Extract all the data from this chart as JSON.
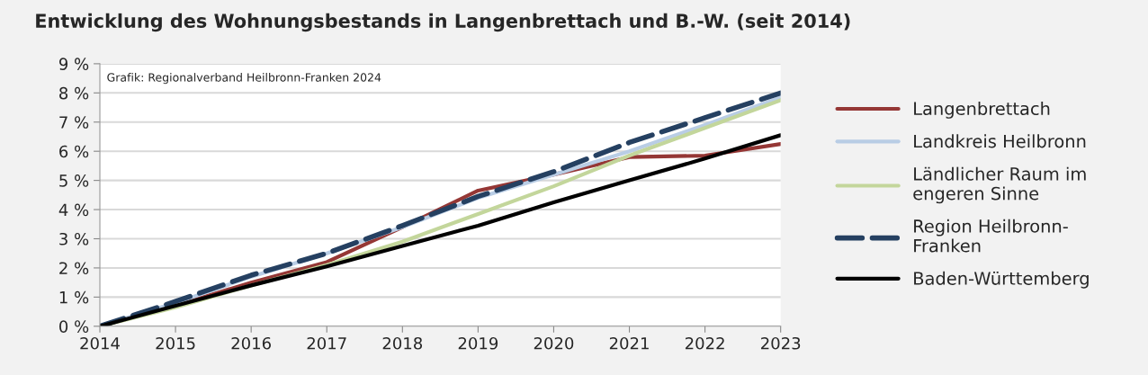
{
  "chart_data": {
    "type": "line",
    "title": "Entwicklung des Wohnungsbestands in Langenbrettach und B.-W. (seit 2014)",
    "annotations": [
      "Grafik: Regionalverband Heilbronn-Franken 2024"
    ],
    "x": [
      2014,
      2015,
      2016,
      2017,
      2018,
      2019,
      2020,
      2021,
      2022,
      2023
    ],
    "series": [
      {
        "name": "Langenbrettach",
        "color": "#953735",
        "values": [
          0,
          0.7,
          1.5,
          2.2,
          3.4,
          4.65,
          5.2,
          5.8,
          5.85,
          6.25
        ]
      },
      {
        "name": "Landkreis Heilbronn",
        "color": "#b9cde5",
        "values": [
          0,
          0.8,
          1.7,
          2.5,
          3.4,
          4.4,
          5.2,
          6.0,
          6.9,
          7.85
        ]
      },
      {
        "name": "Ländlicher Raum im\nengeren Sinne",
        "color": "#c3d69b",
        "values": [
          0,
          0.65,
          1.4,
          2.1,
          2.9,
          3.85,
          4.8,
          5.85,
          6.8,
          7.75
        ]
      },
      {
        "name": "Region Heilbronn-\nFranken",
        "color": "#254061",
        "line_style": "dashed",
        "values": [
          0,
          0.85,
          1.75,
          2.5,
          3.45,
          4.45,
          5.3,
          6.3,
          7.15,
          8.0
        ]
      },
      {
        "name": "Baden-Württemberg",
        "color": "#000000",
        "values": [
          0,
          0.7,
          1.4,
          2.05,
          2.75,
          3.45,
          4.25,
          5.0,
          5.75,
          6.55
        ]
      }
    ],
    "xlim": [
      2014,
      2023
    ],
    "xticks": [
      2014,
      2015,
      2016,
      2017,
      2018,
      2019,
      2020,
      2021,
      2022,
      2023
    ],
    "ylim": [
      0,
      9
    ],
    "yticks": [
      {
        "value": 0,
        "label": "0 %"
      },
      {
        "value": 1,
        "label": "1 %"
      },
      {
        "value": 2,
        "label": "2 %"
      },
      {
        "value": 3,
        "label": "3 %"
      },
      {
        "value": 4,
        "label": "4 %"
      },
      {
        "value": 5,
        "label": "5 %"
      },
      {
        "value": 6,
        "label": "6 %"
      },
      {
        "value": 7,
        "label": "7 %"
      },
      {
        "value": 8,
        "label": "8 %"
      },
      {
        "value": 9,
        "label": "9 %"
      }
    ],
    "grid": "y",
    "legend": "right",
    "marker": "none",
    "line_style": "solid"
  }
}
